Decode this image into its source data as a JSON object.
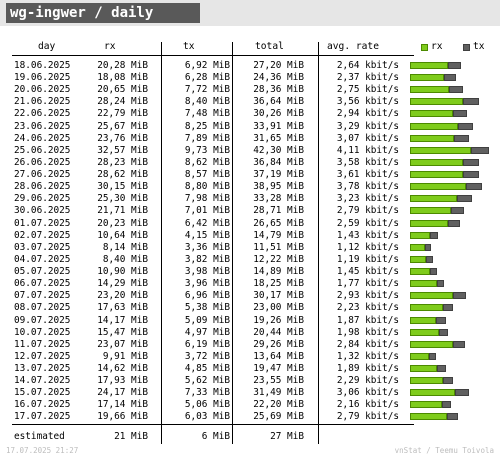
{
  "title": "wg-ingwer / daily",
  "header": {
    "day": "day",
    "rx": "rx",
    "tx": "tx",
    "total": "total",
    "rate": "avg. rate"
  },
  "legend": {
    "rx": "rx",
    "tx": "tx"
  },
  "colors": {
    "rx_fill": "#7fcc1c",
    "tx_fill": "#606060"
  },
  "rows": [
    {
      "day": "18.06.2025",
      "rx": "20,28 MiB",
      "tx": "6,92 MiB",
      "total": "27,20 MiB",
      "rate": "2,64 kbit/s",
      "rx_val": 20.28,
      "tx_val": 6.92
    },
    {
      "day": "19.06.2025",
      "rx": "18,08 MiB",
      "tx": "6,28 MiB",
      "total": "24,36 MiB",
      "rate": "2,37 kbit/s",
      "rx_val": 18.08,
      "tx_val": 6.28
    },
    {
      "day": "20.06.2025",
      "rx": "20,65 MiB",
      "tx": "7,72 MiB",
      "total": "28,36 MiB",
      "rate": "2,75 kbit/s",
      "rx_val": 20.65,
      "tx_val": 7.72
    },
    {
      "day": "21.06.2025",
      "rx": "28,24 MiB",
      "tx": "8,40 MiB",
      "total": "36,64 MiB",
      "rate": "3,56 kbit/s",
      "rx_val": 28.24,
      "tx_val": 8.4
    },
    {
      "day": "22.06.2025",
      "rx": "22,79 MiB",
      "tx": "7,48 MiB",
      "total": "30,26 MiB",
      "rate": "2,94 kbit/s",
      "rx_val": 22.79,
      "tx_val": 7.48
    },
    {
      "day": "23.06.2025",
      "rx": "25,67 MiB",
      "tx": "8,25 MiB",
      "total": "33,91 MiB",
      "rate": "3,29 kbit/s",
      "rx_val": 25.67,
      "tx_val": 8.25
    },
    {
      "day": "24.06.2025",
      "rx": "23,76 MiB",
      "tx": "7,89 MiB",
      "total": "31,65 MiB",
      "rate": "3,07 kbit/s",
      "rx_val": 23.76,
      "tx_val": 7.89
    },
    {
      "day": "25.06.2025",
      "rx": "32,57 MiB",
      "tx": "9,73 MiB",
      "total": "42,30 MiB",
      "rate": "4,11 kbit/s",
      "rx_val": 32.57,
      "tx_val": 9.73
    },
    {
      "day": "26.06.2025",
      "rx": "28,23 MiB",
      "tx": "8,62 MiB",
      "total": "36,84 MiB",
      "rate": "3,58 kbit/s",
      "rx_val": 28.23,
      "tx_val": 8.62
    },
    {
      "day": "27.06.2025",
      "rx": "28,62 MiB",
      "tx": "8,57 MiB",
      "total": "37,19 MiB",
      "rate": "3,61 kbit/s",
      "rx_val": 28.62,
      "tx_val": 8.57
    },
    {
      "day": "28.06.2025",
      "rx": "30,15 MiB",
      "tx": "8,80 MiB",
      "total": "38,95 MiB",
      "rate": "3,78 kbit/s",
      "rx_val": 30.15,
      "tx_val": 8.8
    },
    {
      "day": "29.06.2025",
      "rx": "25,30 MiB",
      "tx": "7,98 MiB",
      "total": "33,28 MiB",
      "rate": "3,23 kbit/s",
      "rx_val": 25.3,
      "tx_val": 7.98
    },
    {
      "day": "30.06.2025",
      "rx": "21,71 MiB",
      "tx": "7,01 MiB",
      "total": "28,71 MiB",
      "rate": "2,79 kbit/s",
      "rx_val": 21.71,
      "tx_val": 7.01
    },
    {
      "day": "01.07.2025",
      "rx": "20,23 MiB",
      "tx": "6,42 MiB",
      "total": "26,65 MiB",
      "rate": "2,59 kbit/s",
      "rx_val": 20.23,
      "tx_val": 6.42
    },
    {
      "day": "02.07.2025",
      "rx": "10,64 MiB",
      "tx": "4,15 MiB",
      "total": "14,79 MiB",
      "rate": "1,43 kbit/s",
      "rx_val": 10.64,
      "tx_val": 4.15
    },
    {
      "day": "03.07.2025",
      "rx": "8,14 MiB",
      "tx": "3,36 MiB",
      "total": "11,51 MiB",
      "rate": "1,12 kbit/s",
      "rx_val": 8.14,
      "tx_val": 3.36
    },
    {
      "day": "04.07.2025",
      "rx": "8,40 MiB",
      "tx": "3,82 MiB",
      "total": "12,22 MiB",
      "rate": "1,19 kbit/s",
      "rx_val": 8.4,
      "tx_val": 3.82
    },
    {
      "day": "05.07.2025",
      "rx": "10,90 MiB",
      "tx": "3,98 MiB",
      "total": "14,89 MiB",
      "rate": "1,45 kbit/s",
      "rx_val": 10.9,
      "tx_val": 3.98
    },
    {
      "day": "06.07.2025",
      "rx": "14,29 MiB",
      "tx": "3,96 MiB",
      "total": "18,25 MiB",
      "rate": "1,77 kbit/s",
      "rx_val": 14.29,
      "tx_val": 3.96
    },
    {
      "day": "07.07.2025",
      "rx": "23,20 MiB",
      "tx": "6,96 MiB",
      "total": "30,17 MiB",
      "rate": "2,93 kbit/s",
      "rx_val": 23.2,
      "tx_val": 6.96
    },
    {
      "day": "08.07.2025",
      "rx": "17,63 MiB",
      "tx": "5,38 MiB",
      "total": "23,00 MiB",
      "rate": "2,23 kbit/s",
      "rx_val": 17.63,
      "tx_val": 5.38
    },
    {
      "day": "09.07.2025",
      "rx": "14,17 MiB",
      "tx": "5,09 MiB",
      "total": "19,26 MiB",
      "rate": "1,87 kbit/s",
      "rx_val": 14.17,
      "tx_val": 5.09
    },
    {
      "day": "10.07.2025",
      "rx": "15,47 MiB",
      "tx": "4,97 MiB",
      "total": "20,44 MiB",
      "rate": "1,98 kbit/s",
      "rx_val": 15.47,
      "tx_val": 4.97
    },
    {
      "day": "11.07.2025",
      "rx": "23,07 MiB",
      "tx": "6,19 MiB",
      "total": "29,26 MiB",
      "rate": "2,84 kbit/s",
      "rx_val": 23.07,
      "tx_val": 6.19
    },
    {
      "day": "12.07.2025",
      "rx": "9,91 MiB",
      "tx": "3,72 MiB",
      "total": "13,64 MiB",
      "rate": "1,32 kbit/s",
      "rx_val": 9.91,
      "tx_val": 3.72
    },
    {
      "day": "13.07.2025",
      "rx": "14,62 MiB",
      "tx": "4,85 MiB",
      "total": "19,47 MiB",
      "rate": "1,89 kbit/s",
      "rx_val": 14.62,
      "tx_val": 4.85
    },
    {
      "day": "14.07.2025",
      "rx": "17,93 MiB",
      "tx": "5,62 MiB",
      "total": "23,55 MiB",
      "rate": "2,29 kbit/s",
      "rx_val": 17.93,
      "tx_val": 5.62
    },
    {
      "day": "15.07.2025",
      "rx": "24,17 MiB",
      "tx": "7,33 MiB",
      "total": "31,49 MiB",
      "rate": "3,06 kbit/s",
      "rx_val": 24.17,
      "tx_val": 7.33
    },
    {
      "day": "16.07.2025",
      "rx": "17,14 MiB",
      "tx": "5,06 MiB",
      "total": "22,20 MiB",
      "rate": "2,16 kbit/s",
      "rx_val": 17.14,
      "tx_val": 5.06
    },
    {
      "day": "17.07.2025",
      "rx": "19,66 MiB",
      "tx": "6,03 MiB",
      "total": "25,69 MiB",
      "rate": "2,79 kbit/s",
      "rx_val": 19.66,
      "tx_val": 6.03
    }
  ],
  "estimated": {
    "label": "estimated",
    "rx": "21 MiB",
    "tx": "6 MiB",
    "total": "27 MiB"
  },
  "footer": {
    "left": "17.07.2025 21:27",
    "right": "vnStat / Teemu Toivola"
  }
}
